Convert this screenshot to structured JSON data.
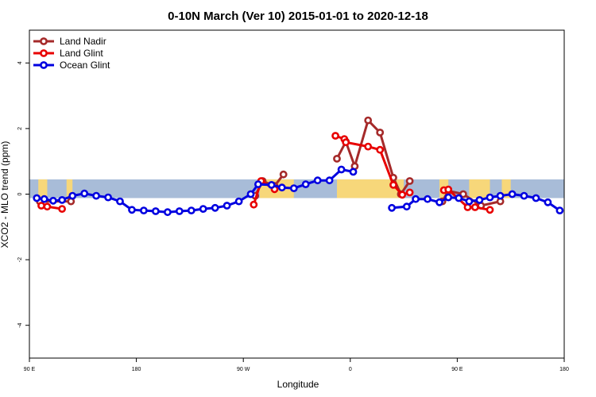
{
  "chart_data": {
    "type": "line",
    "title": "0-10N March (Ver 10)   2015-01-01 to 2020-12-18",
    "xlabel": "Longitude",
    "ylabel": "XCO2 - MLO trend (ppm)",
    "xlim": [
      0,
      360
    ],
    "ylim": [
      -5,
      5
    ],
    "x_ticks": [
      {
        "value": 0,
        "label": "90 E"
      },
      {
        "value": 72,
        "label": "180"
      },
      {
        "value": 144,
        "label": "90 W"
      },
      {
        "value": 216,
        "label": "0"
      },
      {
        "value": 288,
        "label": "90 E"
      },
      {
        "value": 360,
        "label": "180"
      }
    ],
    "y_ticks": [
      {
        "value": -4,
        "label": "-4"
      },
      {
        "value": -2,
        "label": "-2"
      },
      {
        "value": 0,
        "label": "0"
      },
      {
        "value": 2,
        "label": "2"
      },
      {
        "value": 4,
        "label": "4"
      }
    ],
    "legend_position": "top-left",
    "background_band": {
      "y_range": [
        -0.12,
        0.45
      ],
      "ocean_color": "#a8bcd8",
      "land_color": "#f7d77a"
    },
    "land_segments": [
      [
        6,
        12
      ],
      [
        25,
        29
      ],
      [
        155,
        178
      ],
      [
        207,
        252
      ],
      [
        276,
        282
      ],
      [
        296,
        310
      ],
      [
        318,
        324
      ]
    ],
    "series": [
      {
        "name": "Land Nadir",
        "color": "#a52a2a",
        "segments": [
          [
            [
              7,
              -0.22
            ],
            [
              28,
              -0.22
            ]
          ],
          [
            [
              152,
              -0.05
            ],
            [
              157,
              0.4
            ],
            [
              165,
              0.25
            ],
            [
              171,
              0.6
            ]
          ],
          [
            [
              207,
              1.08
            ],
            [
              213,
              1.6
            ],
            [
              219,
              0.85
            ],
            [
              228,
              2.25
            ],
            [
              236,
              1.88
            ],
            [
              245,
              0.5
            ],
            [
              250,
              0.0
            ],
            [
              256,
              0.4
            ]
          ],
          [
            [
              278,
              -0.22
            ],
            [
              282,
              0.1
            ],
            [
              292,
              0.0
            ],
            [
              304,
              -0.35
            ],
            [
              317,
              -0.22
            ]
          ]
        ]
      },
      {
        "name": "Land Glint",
        "color": "#e80000",
        "segments": [
          [
            [
              8,
              -0.35
            ],
            [
              12,
              -0.38
            ],
            [
              22,
              -0.45
            ]
          ],
          [
            [
              151,
              -0.32
            ],
            [
              156,
              0.4
            ],
            [
              165,
              0.15
            ]
          ],
          [
            [
              206,
              1.78
            ],
            [
              212,
              1.68
            ],
            [
              213,
              1.58
            ],
            [
              228,
              1.45
            ],
            [
              236,
              1.35
            ],
            [
              245,
              0.28
            ],
            [
              251,
              -0.02
            ],
            [
              256,
              0.05
            ]
          ],
          [
            [
              279,
              0.12
            ],
            [
              282,
              0.14
            ],
            [
              295,
              -0.4
            ],
            [
              300,
              -0.4
            ],
            [
              310,
              -0.48
            ]
          ]
        ]
      },
      {
        "name": "Ocean Glint",
        "color": "#0000e0",
        "segments": [
          [
            [
              5,
              -0.12
            ],
            [
              10,
              -0.15
            ],
            [
              16,
              -0.2
            ],
            [
              22,
              -0.18
            ],
            [
              29,
              -0.05
            ],
            [
              37,
              0.02
            ],
            [
              45,
              -0.05
            ],
            [
              53,
              -0.1
            ],
            [
              61,
              -0.22
            ],
            [
              69,
              -0.48
            ],
            [
              77,
              -0.5
            ],
            [
              85,
              -0.52
            ],
            [
              93,
              -0.55
            ],
            [
              101,
              -0.52
            ],
            [
              109,
              -0.5
            ],
            [
              117,
              -0.45
            ],
            [
              125,
              -0.42
            ],
            [
              133,
              -0.35
            ],
            [
              141,
              -0.22
            ],
            [
              149,
              0.0
            ],
            [
              154,
              0.3
            ],
            [
              163,
              0.28
            ],
            [
              170,
              0.2
            ],
            [
              178,
              0.18
            ],
            [
              186,
              0.3
            ],
            [
              194,
              0.42
            ],
            [
              202,
              0.42
            ],
            [
              210,
              0.75
            ],
            [
              218,
              0.68
            ]
          ],
          [
            [
              244,
              -0.42
            ],
            [
              254,
              -0.38
            ],
            [
              260,
              -0.15
            ],
            [
              268,
              -0.15
            ],
            [
              276,
              -0.25
            ],
            [
              282,
              -0.1
            ],
            [
              289,
              -0.12
            ],
            [
              296,
              -0.22
            ],
            [
              303,
              -0.18
            ],
            [
              310,
              -0.1
            ],
            [
              317,
              -0.05
            ],
            [
              325,
              0.0
            ],
            [
              333,
              -0.05
            ],
            [
              341,
              -0.12
            ],
            [
              349,
              -0.25
            ],
            [
              357,
              -0.5
            ]
          ]
        ]
      }
    ]
  }
}
